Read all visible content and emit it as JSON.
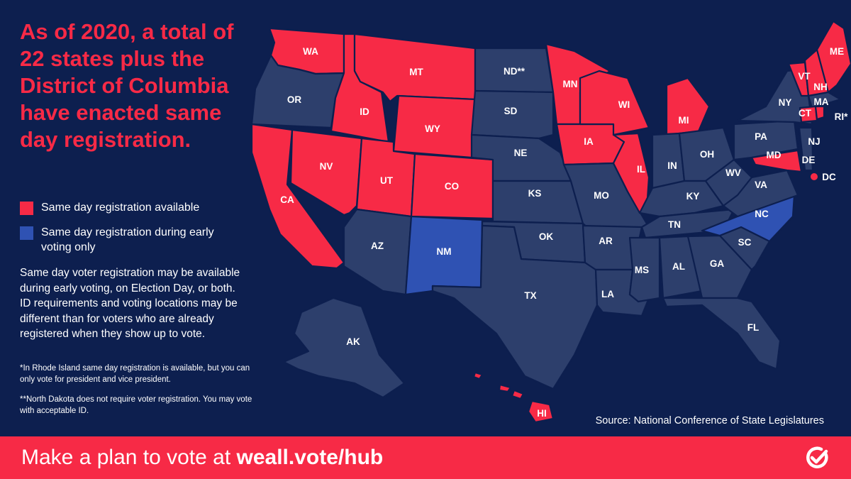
{
  "headline": "As of 2020, a total of 22 states plus the District of Columbia have enacted same day registration.",
  "legend": [
    {
      "label": "Same day registration available",
      "color": "#f72a46"
    },
    {
      "label": "Same day registration during early voting only",
      "color": "#2f52b3"
    }
  ],
  "colors": {
    "background": "#0d1f4f",
    "state_default": "#2d3f6c",
    "state_border": "#0d1f4f",
    "accent": "#f72a46"
  },
  "body_text": "Same day voter registration may be available during early voting, on Election Day, or both. ID requirements and voting locations may be different than for voters who are already registered when they show up to vote.",
  "footnotes": [
    "*In Rhode Island same day registration is available, but you can only vote for president and vice president.",
    "**North Dakota does not require voter registration. You may vote with acceptable ID."
  ],
  "source": "Source: National Conference of State Legislatures",
  "cta": {
    "prefix": "Make a plan to vote at ",
    "link": "weall.vote/hub"
  },
  "logo_icon": "checkmark-circle-icon",
  "states": [
    {
      "abbr": "WA",
      "status": "same_day"
    },
    {
      "abbr": "OR",
      "status": "none"
    },
    {
      "abbr": "CA",
      "status": "same_day"
    },
    {
      "abbr": "ID",
      "status": "same_day"
    },
    {
      "abbr": "NV",
      "status": "same_day"
    },
    {
      "abbr": "MT",
      "status": "same_day"
    },
    {
      "abbr": "WY",
      "status": "same_day"
    },
    {
      "abbr": "UT",
      "status": "same_day"
    },
    {
      "abbr": "CO",
      "status": "same_day"
    },
    {
      "abbr": "AZ",
      "status": "none"
    },
    {
      "abbr": "NM",
      "status": "early_voting"
    },
    {
      "abbr": "ND**",
      "status": "none"
    },
    {
      "abbr": "SD",
      "status": "none"
    },
    {
      "abbr": "NE",
      "status": "none"
    },
    {
      "abbr": "KS",
      "status": "none"
    },
    {
      "abbr": "OK",
      "status": "none"
    },
    {
      "abbr": "TX",
      "status": "none"
    },
    {
      "abbr": "MN",
      "status": "same_day"
    },
    {
      "abbr": "IA",
      "status": "same_day"
    },
    {
      "abbr": "MO",
      "status": "none"
    },
    {
      "abbr": "AR",
      "status": "none"
    },
    {
      "abbr": "LA",
      "status": "none"
    },
    {
      "abbr": "WI",
      "status": "same_day"
    },
    {
      "abbr": "IL",
      "status": "same_day"
    },
    {
      "abbr": "MI",
      "status": "same_day"
    },
    {
      "abbr": "IN",
      "status": "none"
    },
    {
      "abbr": "OH",
      "status": "none"
    },
    {
      "abbr": "KY",
      "status": "none"
    },
    {
      "abbr": "TN",
      "status": "none"
    },
    {
      "abbr": "MS",
      "status": "none"
    },
    {
      "abbr": "AL",
      "status": "none"
    },
    {
      "abbr": "GA",
      "status": "none"
    },
    {
      "abbr": "FL",
      "status": "none"
    },
    {
      "abbr": "SC",
      "status": "none"
    },
    {
      "abbr": "NC",
      "status": "early_voting"
    },
    {
      "abbr": "VA",
      "status": "none"
    },
    {
      "abbr": "WV",
      "status": "none"
    },
    {
      "abbr": "PA",
      "status": "none"
    },
    {
      "abbr": "NY",
      "status": "none"
    },
    {
      "abbr": "VT",
      "status": "same_day"
    },
    {
      "abbr": "NH",
      "status": "same_day"
    },
    {
      "abbr": "ME",
      "status": "same_day"
    },
    {
      "abbr": "MA",
      "status": "none"
    },
    {
      "abbr": "CT",
      "status": "same_day"
    },
    {
      "abbr": "RI*",
      "status": "same_day"
    },
    {
      "abbr": "NJ",
      "status": "none"
    },
    {
      "abbr": "DE",
      "status": "none"
    },
    {
      "abbr": "MD",
      "status": "same_day"
    },
    {
      "abbr": "DC",
      "status": "same_day"
    },
    {
      "abbr": "AK",
      "status": "none"
    },
    {
      "abbr": "HI",
      "status": "same_day"
    }
  ]
}
